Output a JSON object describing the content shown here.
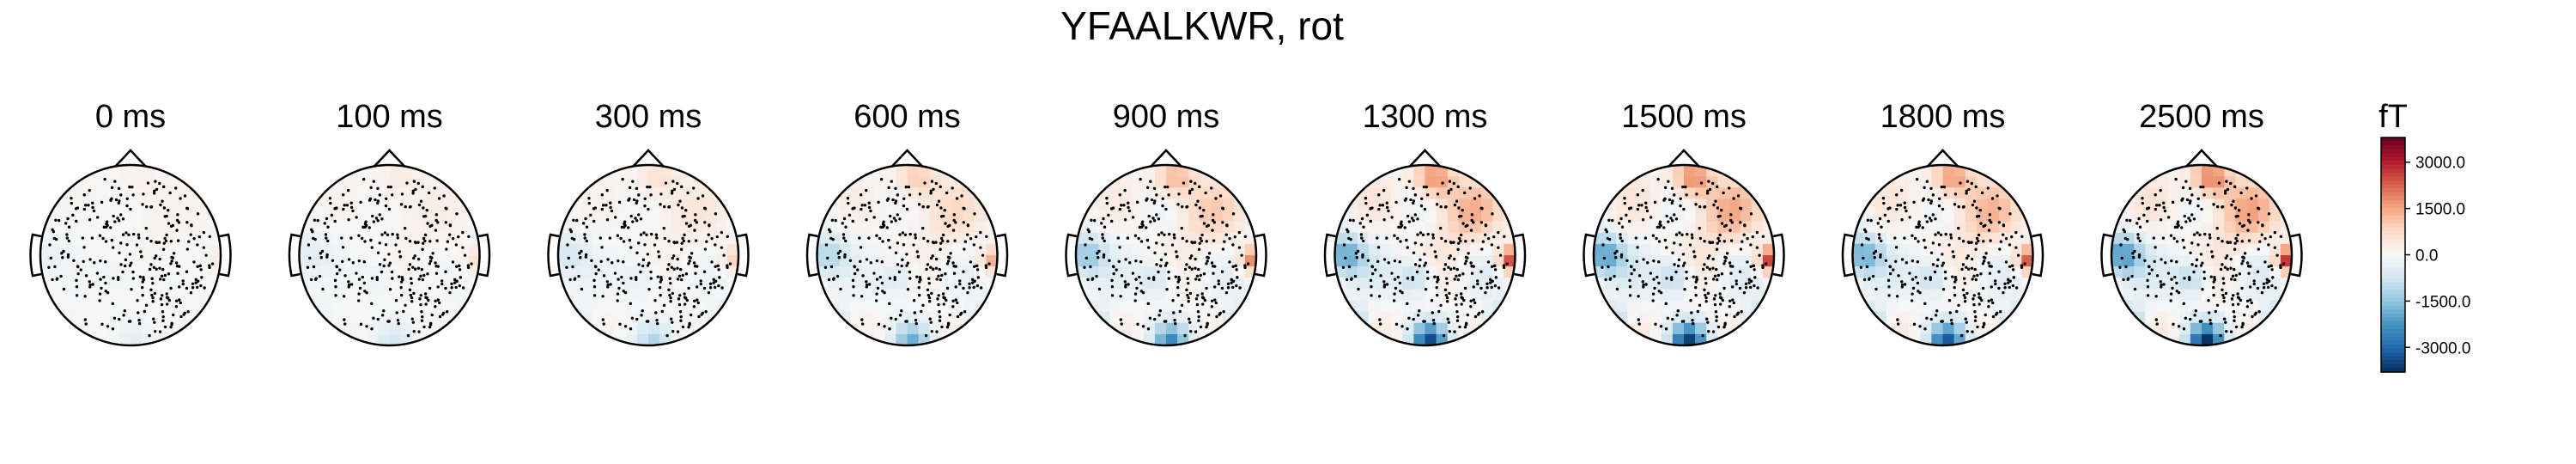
{
  "figure": {
    "title": "YFAALKWR, rot"
  },
  "chart_data": {
    "type": "heatmap",
    "title": "YFAALKWR, rot",
    "panels": [
      {
        "label": "0 ms",
        "time_ms": 0,
        "amplitude": 0.1
      },
      {
        "label": "100 ms",
        "time_ms": 100,
        "amplitude": 0.18
      },
      {
        "label": "300 ms",
        "time_ms": 300,
        "amplitude": 0.3
      },
      {
        "label": "600 ms",
        "time_ms": 600,
        "amplitude": 0.5
      },
      {
        "label": "900 ms",
        "time_ms": 900,
        "amplitude": 0.65
      },
      {
        "label": "1300 ms",
        "time_ms": 1300,
        "amplitude": 0.9
      },
      {
        "label": "1500 ms",
        "time_ms": 1500,
        "amplitude": 0.95
      },
      {
        "label": "1800 ms",
        "time_ms": 1800,
        "amplitude": 0.85
      },
      {
        "label": "2500 ms",
        "time_ms": 2500,
        "amplitude": 1.0
      }
    ],
    "colorbar": {
      "unit": "fT",
      "range": [
        -3800,
        3800
      ],
      "ticks": [
        3000,
        1500,
        0,
        -1500,
        -3000
      ],
      "tick_labels": [
        "3000.0",
        "1500.0",
        "0.0",
        "-1500.0",
        "-3000.0"
      ],
      "colormap": "RdBu_r"
    },
    "colors": {
      "negative": "#053061",
      "neutral": "#f7f7f7",
      "positive": "#67001f"
    }
  }
}
